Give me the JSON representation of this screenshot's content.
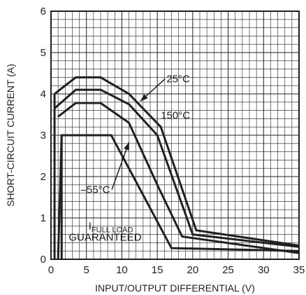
{
  "chart_data": {
    "type": "line",
    "title": "",
    "xlabel": "INPUT/OUTPUT DIFFERENTIAL (V)",
    "ylabel": "SHORT-CIRCUIT CURRENT (A)",
    "xlim": [
      0,
      35
    ],
    "ylim": [
      0,
      6
    ],
    "xticks": [
      "0",
      "5",
      "10",
      "15",
      "20",
      "25",
      "30",
      "35"
    ],
    "yticks": [
      "0",
      "1",
      "2",
      "3",
      "4",
      "5",
      "6"
    ],
    "grid": true,
    "series": [
      {
        "name": "25°C",
        "x": [
          0.5,
          3.5,
          7,
          11,
          15.5,
          20.5,
          35
        ],
        "y": [
          4.0,
          4.4,
          4.4,
          4.0,
          3.2,
          0.7,
          0.33
        ]
      },
      {
        "name": "150°C",
        "x": [
          0.5,
          3.5,
          7,
          11,
          15,
          20,
          35
        ],
        "y": [
          3.65,
          4.1,
          4.1,
          3.75,
          3.0,
          0.6,
          0.3
        ]
      },
      {
        "name": "–55°C",
        "x": [
          1.0,
          3.5,
          7,
          11,
          15,
          18.5,
          35
        ],
        "y": [
          3.45,
          3.78,
          3.78,
          3.3,
          1.8,
          0.55,
          0.15
        ]
      },
      {
        "name": "",
        "x": [
          1.0,
          1.5,
          8.5,
          17,
          35
        ],
        "y": [
          0.0,
          3.0,
          3.0,
          0.27,
          0.2
        ]
      }
    ],
    "vertical_segments": [
      {
        "x": 0.5,
        "y": [
          0.0,
          4.0
        ]
      },
      {
        "x": 1.5,
        "y": [
          0.0,
          3.0
        ]
      }
    ],
    "annotations": [
      {
        "text": "25°C",
        "x": 16.3,
        "y": 4.28,
        "arrow_to": [
          12.6,
          3.82
        ]
      },
      {
        "text": "150°C",
        "x": 15.5,
        "y": 3.4
      },
      {
        "text": "–55°C",
        "x": 4.2,
        "y": 1.6,
        "arrow_to": [
          11.0,
          2.83
        ]
      },
      {
        "text_main": "I",
        "text_sub": "FULL LOAD",
        "x": 5.3,
        "y": 0.72
      },
      {
        "text": "GUARANTEED",
        "x": 2.5,
        "y": 0.45
      }
    ]
  }
}
